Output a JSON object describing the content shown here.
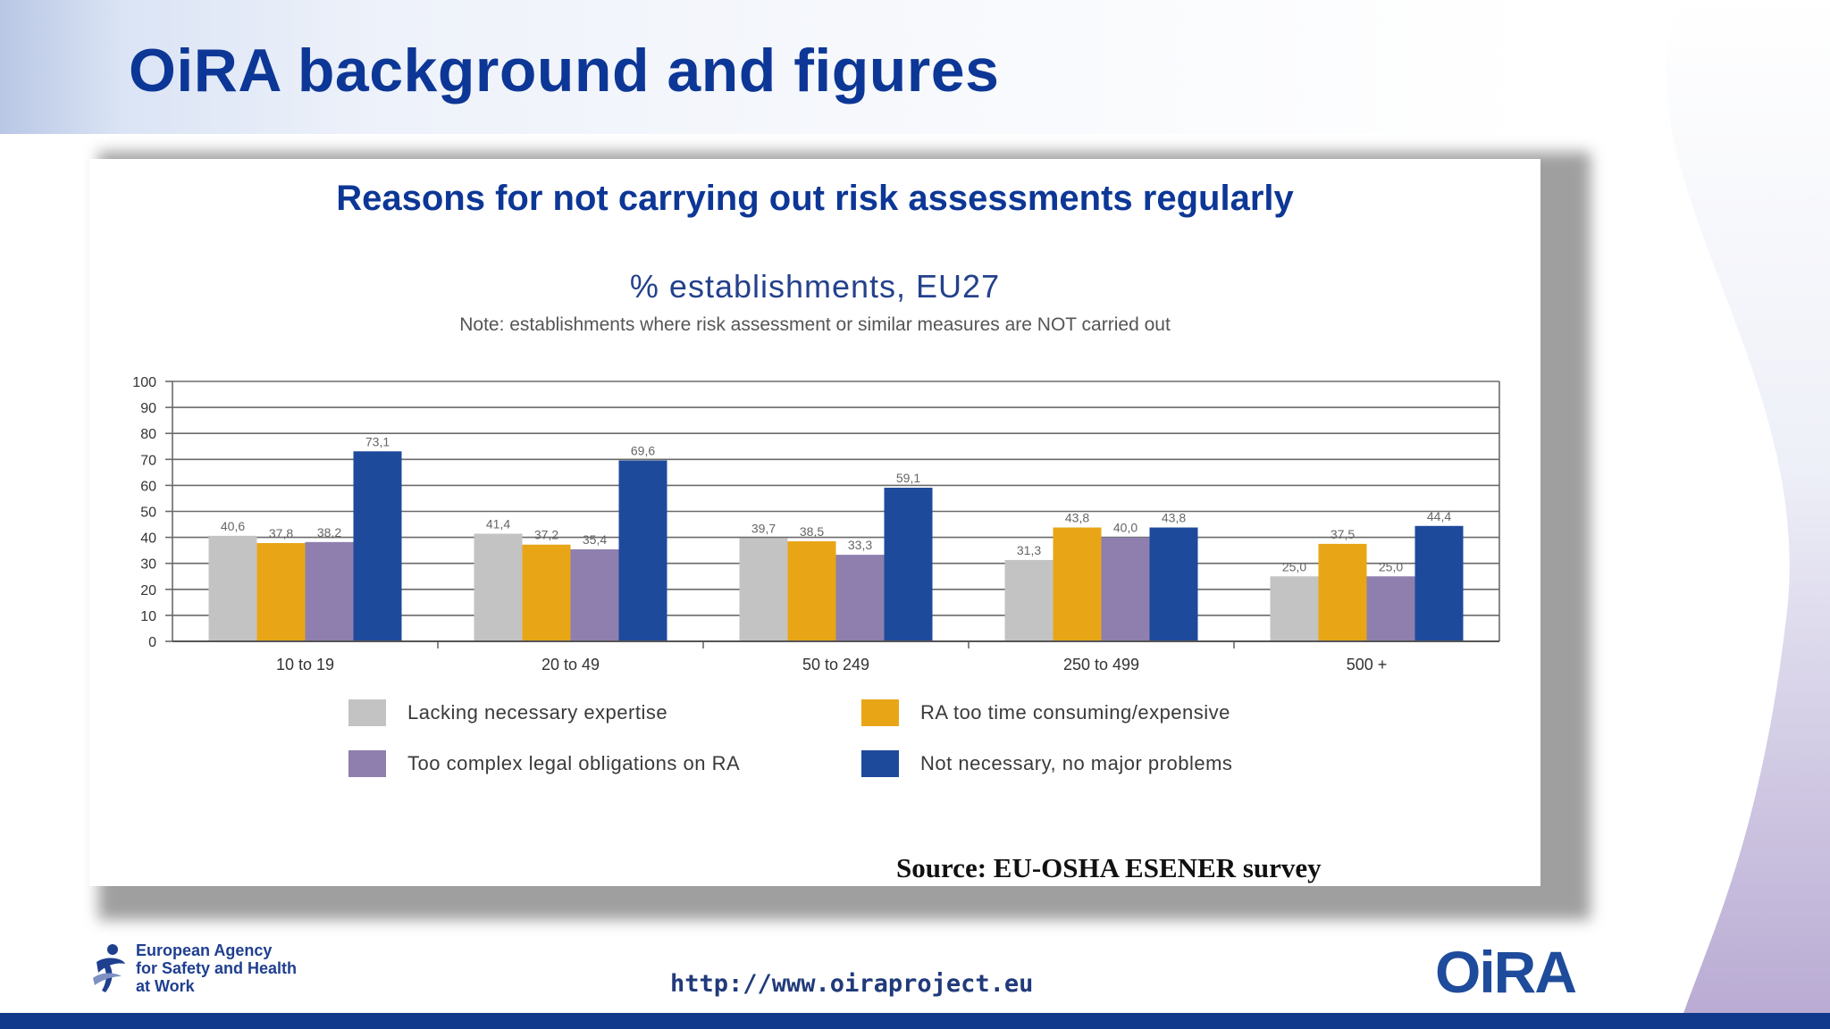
{
  "slide": {
    "title": "OiRA background and figures",
    "panel_title": "Reasons for not carrying out risk assessments regularly",
    "source": "Source: EU-OSHA ESENER survey"
  },
  "footer": {
    "agency_line1": "European Agency",
    "agency_line2": "for Safety and Health",
    "agency_line3": "at Work",
    "url": "http://www.oiraproject.eu",
    "logo_text": "OiRA"
  },
  "colors": {
    "title_blue": "#0d3796",
    "series_gray": "#c3c3c3",
    "series_orange": "#e8a617",
    "series_purple": "#8e7fae",
    "series_blue": "#1e4a9c",
    "footer_bar": "#123a8c"
  },
  "chart_data": {
    "type": "bar",
    "title": "% establishments, EU27",
    "subtitle": "Note: establishments where risk assessment or similar measures are NOT carried out",
    "categories": [
      "10 to 19",
      "20 to 49",
      "50 to 249",
      "250 to 499",
      "500 +"
    ],
    "series": [
      {
        "name": "Lacking necessary expertise",
        "values": [
          40.6,
          41.4,
          39.7,
          31.3,
          25.0
        ],
        "labels": [
          "40,6",
          "41,4",
          "39,7",
          "31,3",
          "25,0"
        ],
        "color": "#c3c3c3"
      },
      {
        "name": "RA too time consuming/expensive",
        "values": [
          37.8,
          37.2,
          38.5,
          43.8,
          37.5
        ],
        "labels": [
          "37,8",
          "37,2",
          "38,5",
          "43,8",
          "37,5"
        ],
        "color": "#e8a617"
      },
      {
        "name": "Too complex legal obligations on RA",
        "values": [
          38.2,
          35.4,
          33.3,
          40.0,
          25.0
        ],
        "labels": [
          "38,2",
          "35,4",
          "33,3",
          "40,0",
          "25,0"
        ],
        "color": "#8e7fae"
      },
      {
        "name": "Not necessary, no major problems",
        "values": [
          73.1,
          69.6,
          59.1,
          43.8,
          44.4
        ],
        "labels": [
          "73,1",
          "69,6",
          "59,1",
          "43,8",
          "44,4"
        ],
        "color": "#1e4a9c"
      }
    ],
    "y_ticks": [
      "0",
      "10",
      "20",
      "30",
      "40",
      "50",
      "60",
      "70",
      "80",
      "90",
      "100"
    ],
    "ylim": [
      0,
      100
    ],
    "grid": true,
    "legend_position": "bottom"
  }
}
